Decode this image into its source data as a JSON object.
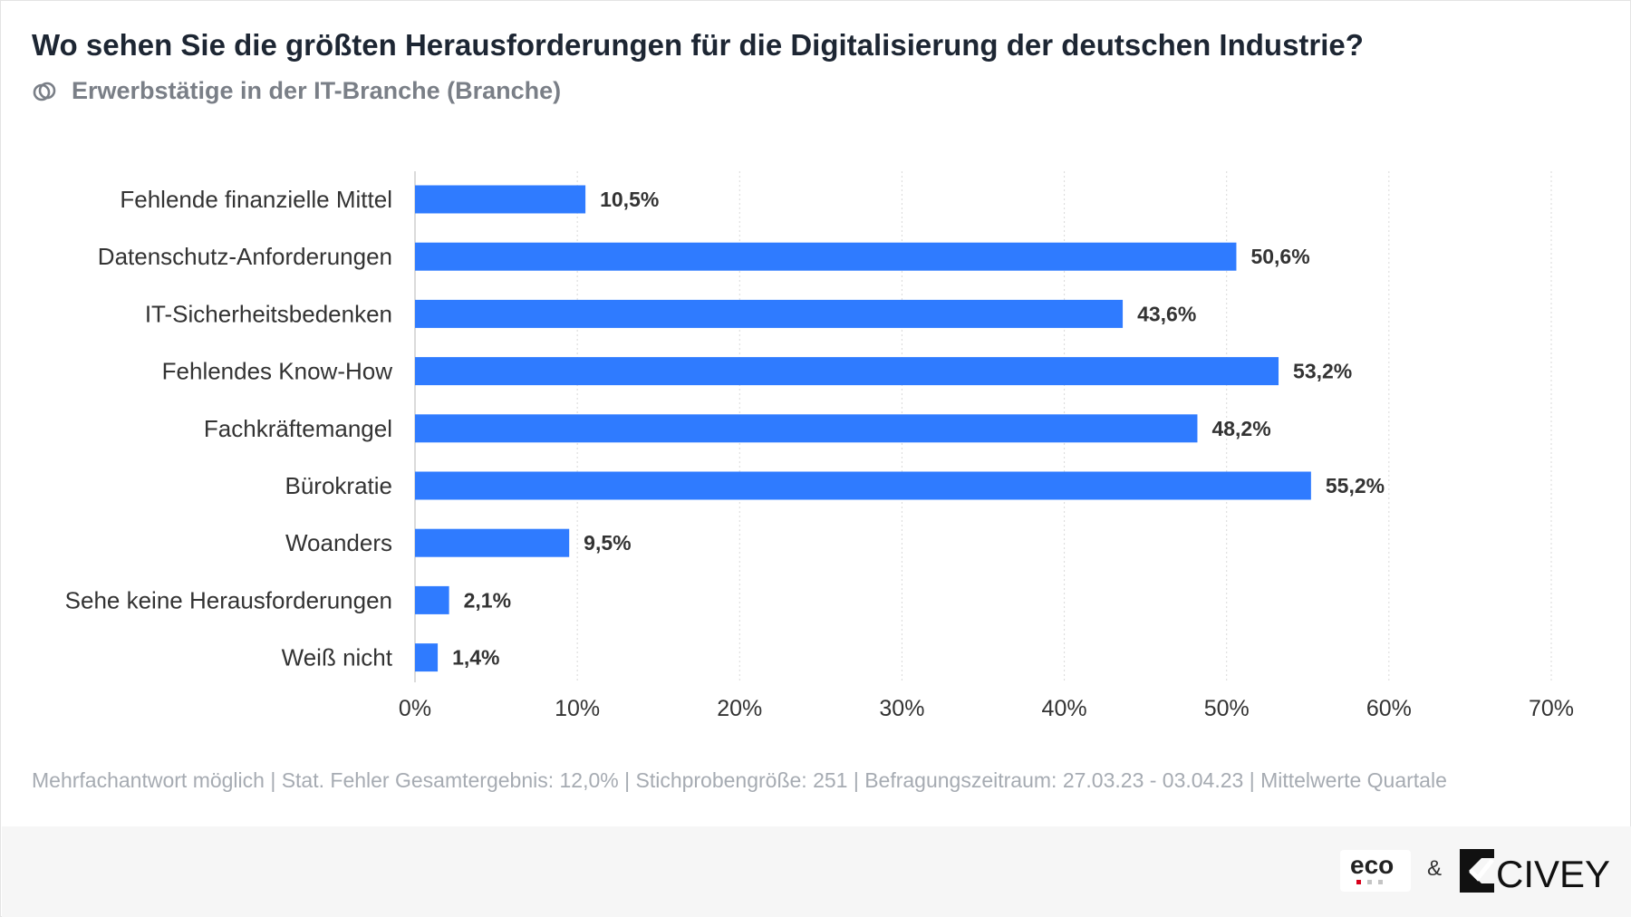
{
  "title": "Wo sehen Sie die größten Herausforderungen für die Digitalisierung der deutschen Industrie?",
  "subtitle": "Erwerbstätige in der IT-Branche (Branche)",
  "subtitle_icon": "overlapping-circles-icon",
  "footnote": "Mehrfachantwort möglich | Stat. Fehler Gesamtergebnis: 12,0% | Stichprobengröße: 251 | Befragungszeitraum: 27.03.23 - 03.04.23 | Mittelwerte Quartale",
  "logos": {
    "eco": "eco",
    "ampersand": "&",
    "civey": "CIVEY"
  },
  "colors": {
    "bar": "#2f7bff",
    "title": "#1d2633",
    "subtitle": "#7a7f87",
    "footnote": "#a6abb2"
  },
  "chart_data": {
    "type": "bar",
    "orientation": "horizontal",
    "categories": [
      "Fehlende finanzielle Mittel",
      "Datenschutz-Anforderungen",
      "IT-Sicherheitsbedenken",
      "Fehlendes Know-How",
      "Fachkräftemangel",
      "Bürokratie",
      "Woanders",
      "Sehe keine Herausforderungen",
      "Weiß nicht"
    ],
    "values": [
      10.5,
      50.6,
      43.6,
      53.2,
      48.2,
      55.2,
      9.5,
      2.1,
      1.4
    ],
    "value_labels": [
      "10,5%",
      "50,6%",
      "43,6%",
      "53,2%",
      "48,2%",
      "55,2%",
      "9,5%",
      "2,1%",
      "1,4%"
    ],
    "xlim": [
      0,
      70
    ],
    "xticks": [
      0,
      10,
      20,
      30,
      40,
      50,
      60,
      70
    ],
    "xtick_labels": [
      "0%",
      "10%",
      "20%",
      "30%",
      "40%",
      "50%",
      "60%",
      "70%"
    ],
    "grid": true,
    "legend": "none"
  }
}
